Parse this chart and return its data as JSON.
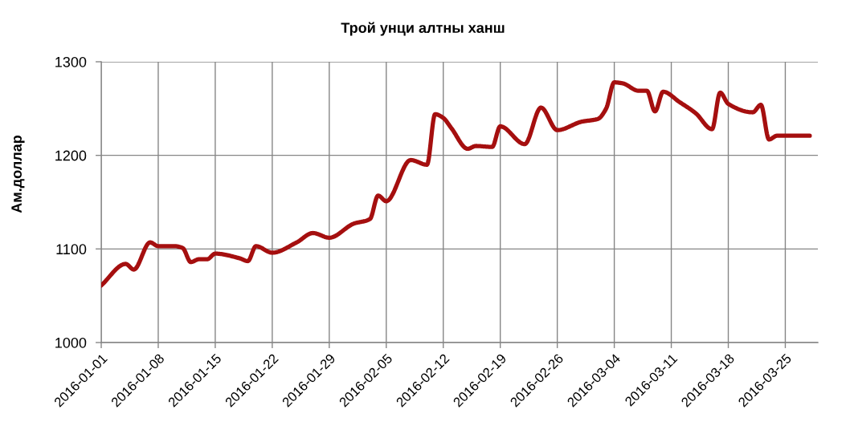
{
  "chart_data": {
    "type": "line",
    "title": "Трой унци алтны ханш",
    "ylabel": "Ам.доллар",
    "x": [
      "2016-01-01",
      "2016-01-04",
      "2016-01-05",
      "2016-01-07",
      "2016-01-08",
      "2016-01-10",
      "2016-01-11",
      "2016-01-12",
      "2016-01-13",
      "2016-01-14",
      "2016-01-15",
      "2016-01-18",
      "2016-01-19",
      "2016-01-20",
      "2016-01-22",
      "2016-01-25",
      "2016-01-27",
      "2016-01-29",
      "2016-02-01",
      "2016-02-03",
      "2016-02-04",
      "2016-02-05",
      "2016-02-08",
      "2016-02-10",
      "2016-02-11",
      "2016-02-12",
      "2016-02-13",
      "2016-02-15",
      "2016-02-16",
      "2016-02-18",
      "2016-02-19",
      "2016-02-22",
      "2016-02-24",
      "2016-02-26",
      "2016-02-29",
      "2016-03-02",
      "2016-03-03",
      "2016-03-04",
      "2016-03-05",
      "2016-03-07",
      "2016-03-08",
      "2016-03-09",
      "2016-03-10",
      "2016-03-12",
      "2016-03-14",
      "2016-03-16",
      "2016-03-17",
      "2016-03-18",
      "2016-03-21",
      "2016-03-22",
      "2016-03-23",
      "2016-03-24",
      "2016-03-28"
    ],
    "series": [
      {
        "color": "#a50f0f",
        "values": [
          1061,
          1084,
          1078,
          1107,
          1103,
          1103,
          1101,
          1086,
          1089,
          1089,
          1095,
          1090,
          1087,
          1103,
          1096,
          1107,
          1117,
          1112,
          1127,
          1132,
          1157,
          1151,
          1195,
          1190,
          1244,
          1240,
          1229,
          1207,
          1210,
          1209,
          1231,
          1212,
          1251,
          1227,
          1236,
          1239,
          1250,
          1278,
          1277,
          1269,
          1269,
          1247,
          1268,
          1257,
          1245,
          1228,
          1267,
          1255,
          1246,
          1254,
          1217,
          1221,
          1221
        ]
      }
    ],
    "xlim": [
      "2016-01-01",
      "2016-03-29"
    ],
    "xticks": [
      "2016-01-01",
      "2016-01-08",
      "2016-01-15",
      "2016-01-22",
      "2016-01-29",
      "2016-02-05",
      "2016-02-12",
      "2016-02-19",
      "2016-02-26",
      "2016-03-04",
      "2016-03-11",
      "2016-03-18",
      "2016-03-25"
    ],
    "ylim": [
      1000,
      1300
    ],
    "yticks": [
      1000,
      1100,
      1200,
      1300
    ],
    "grid": true
  }
}
